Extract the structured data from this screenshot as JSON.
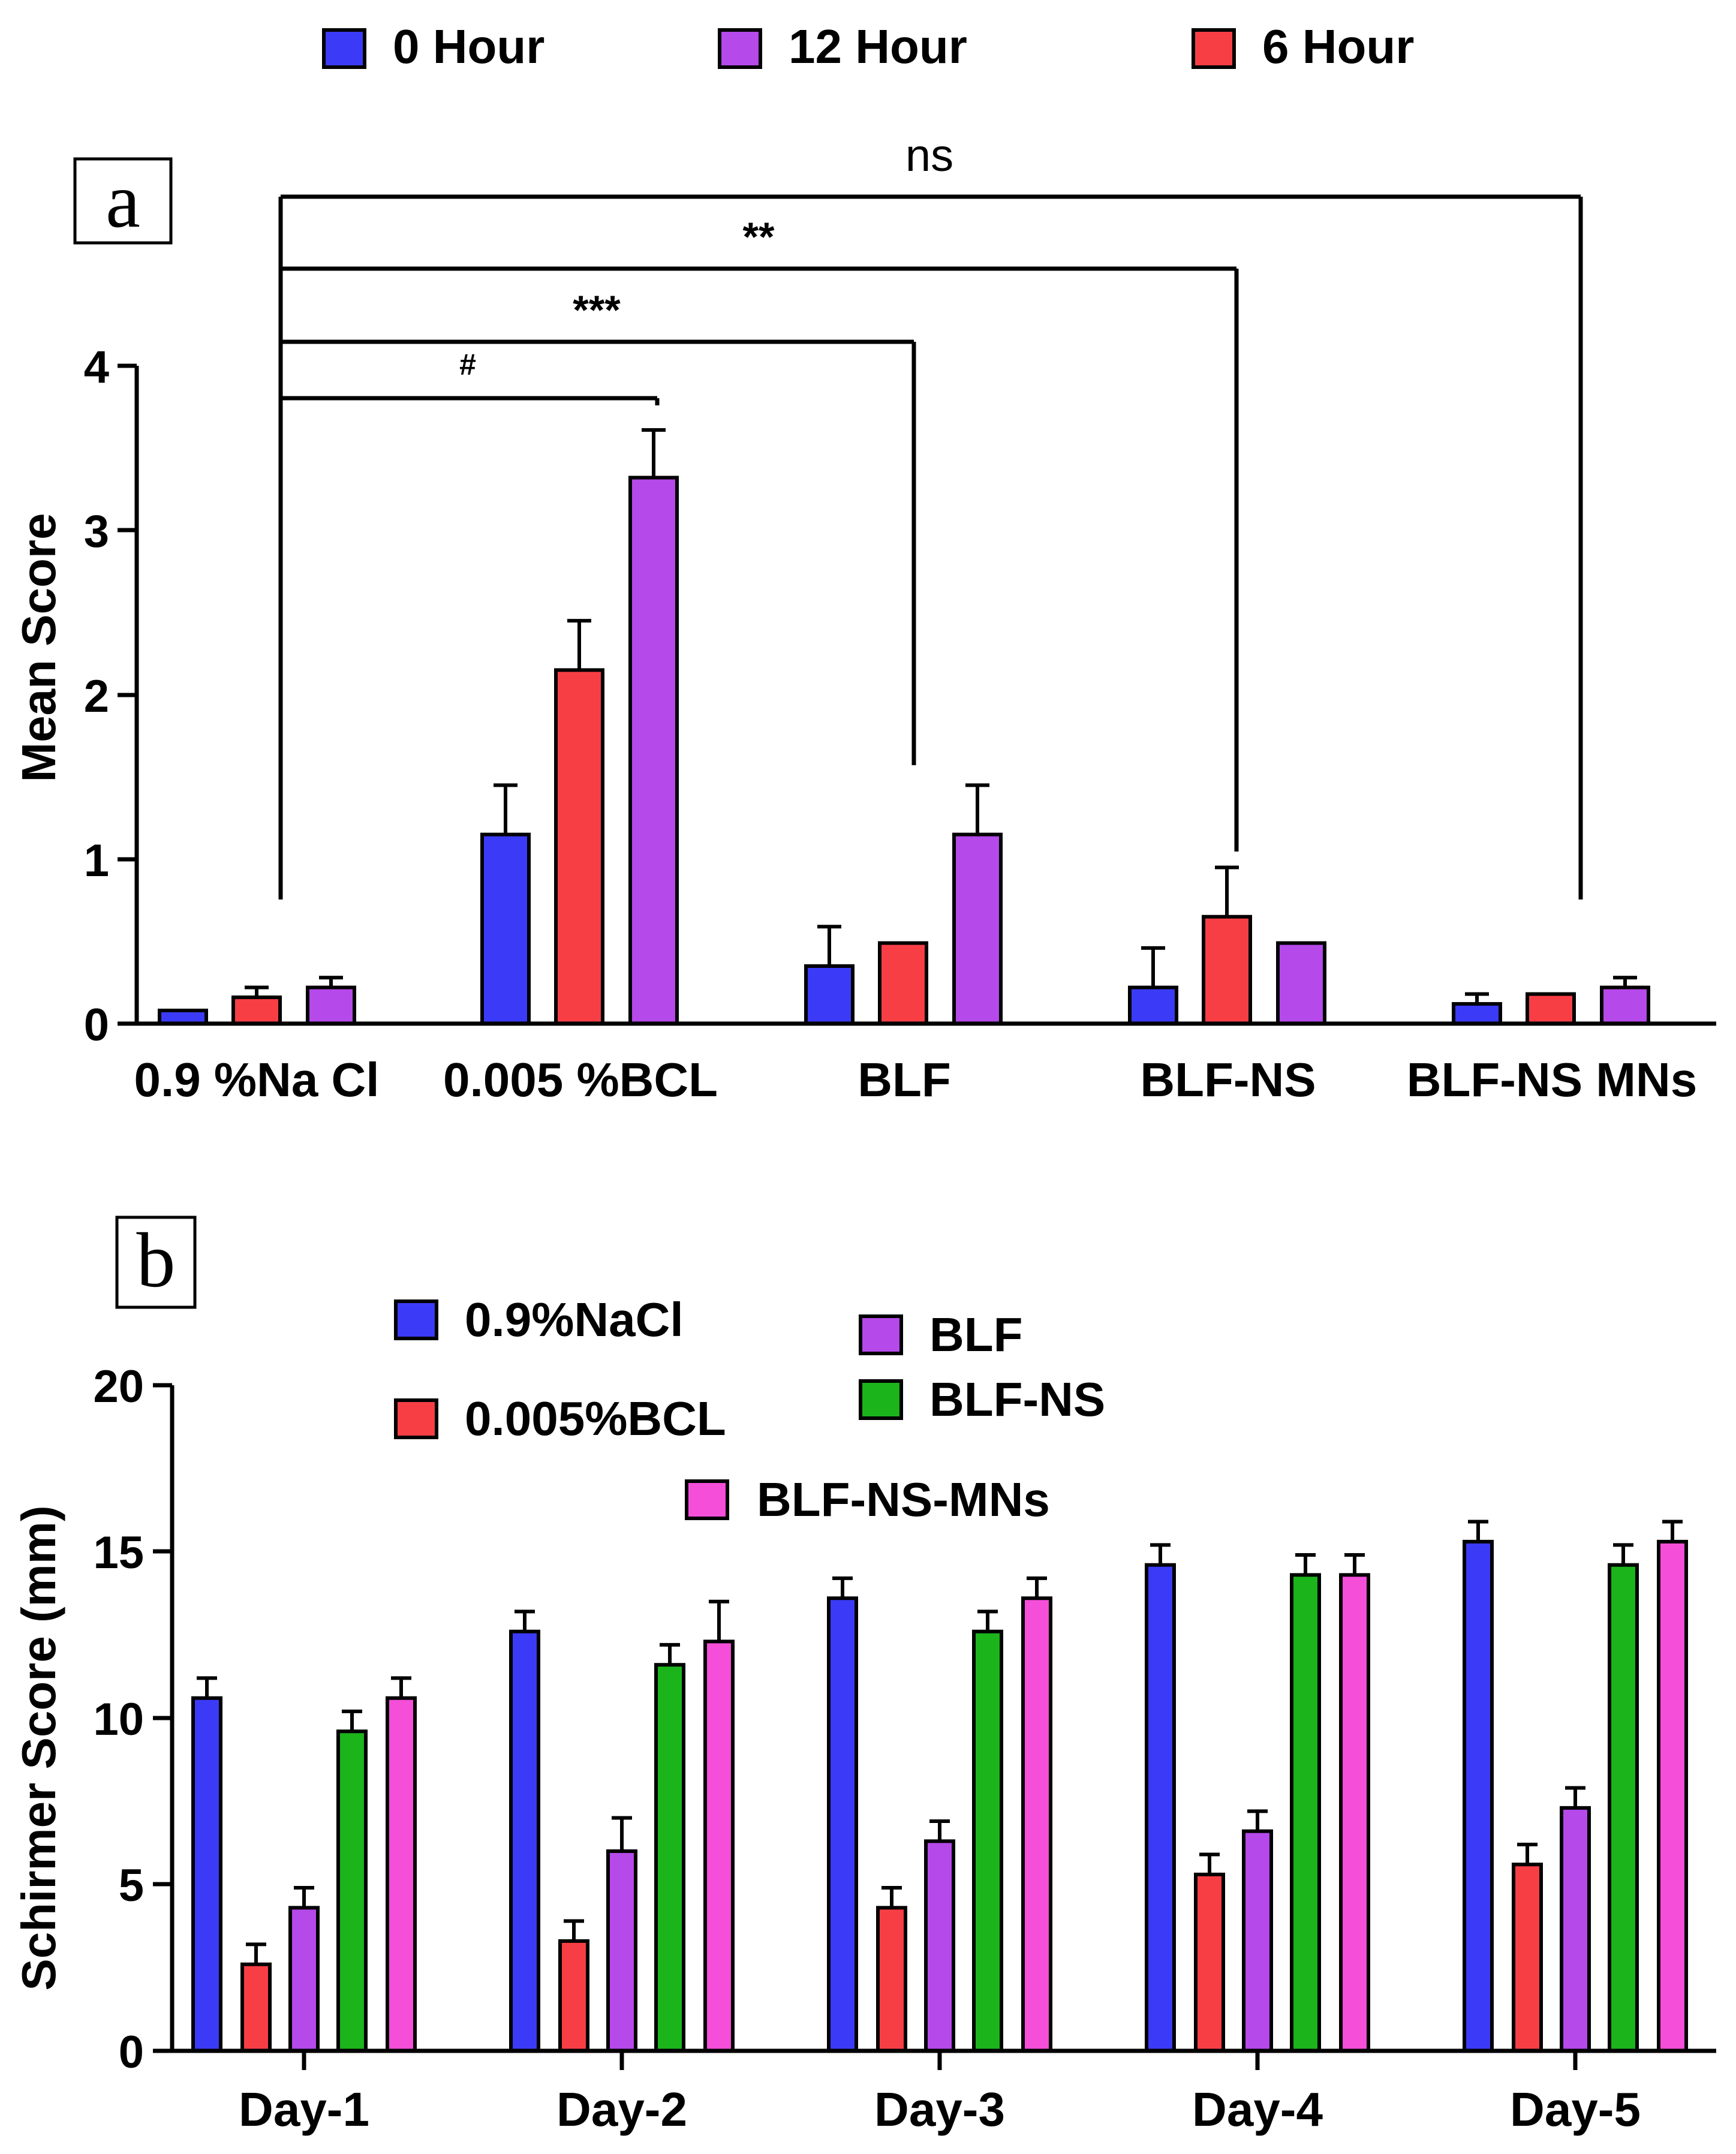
{
  "chart_data": [
    {
      "id": "a",
      "panel_label": "a",
      "type": "bar",
      "ylabel": "Mean Score",
      "xlabel": "",
      "ylim": [
        0,
        4
      ],
      "yticks": [
        "0",
        "1",
        "2",
        "3",
        "4"
      ],
      "categories": [
        "0.9 %Na Cl",
        "0.005 %BCL",
        "BLF",
        "BLF-NS",
        "BLF-NS MNs"
      ],
      "legend_position": "top",
      "legend": [
        {
          "label": "0 Hour",
          "color": "#3b3bf7"
        },
        {
          "label": "12 Hour",
          "color": "#b549ea"
        },
        {
          "label": "6 Hour",
          "color": "#f83e45"
        }
      ],
      "series": [
        {
          "name": "0 Hour",
          "color": "#3b3bf7",
          "values": [
            0.08,
            1.15,
            0.35,
            0.22,
            0.12
          ],
          "errors": [
            0,
            0.3,
            0.24,
            0.24,
            0.06
          ]
        },
        {
          "name": "6 Hour",
          "color": "#f83e45",
          "values": [
            0.16,
            2.15,
            0.49,
            0.65,
            0.18
          ],
          "errors": [
            0.06,
            0.3,
            0,
            0.3,
            0
          ]
        },
        {
          "name": "12 Hour",
          "color": "#b549ea",
          "values": [
            0.22,
            3.32,
            1.15,
            0.49,
            0.22
          ],
          "errors": [
            0.06,
            0.29,
            0.3,
            0,
            0.06
          ]
        }
      ],
      "comparisons": [
        {
          "from": "0.9 %Na Cl",
          "to": "0.005 %BCL",
          "label": "#"
        },
        {
          "from": "0.9 %Na Cl",
          "to": "BLF",
          "label": "***"
        },
        {
          "from": "0.9 %Na Cl",
          "to": "BLF-NS",
          "label": "**"
        },
        {
          "from": "0.9 %Na Cl",
          "to": "BLF-NS MNs",
          "label": "ns"
        }
      ]
    },
    {
      "id": "b",
      "panel_label": "b",
      "type": "bar",
      "ylabel": "Schirmer Score (mm)",
      "xlabel": "",
      "ylim": [
        0,
        20
      ],
      "yticks": [
        "0",
        "5",
        "10",
        "15",
        "20"
      ],
      "categories": [
        "Day-1",
        "Day-2",
        "Day-3",
        "Day-4",
        "Day-5"
      ],
      "legend_position": "top-left",
      "series": [
        {
          "name": "0.9%NaCl",
          "color": "#3b3bf7",
          "values": [
            10.6,
            12.6,
            13.6,
            14.6,
            15.3
          ],
          "errors": [
            0.6,
            0.6,
            0.6,
            0.6,
            0.6
          ]
        },
        {
          "name": "0.005%BCL",
          "color": "#f83e45",
          "values": [
            2.6,
            3.3,
            4.3,
            5.3,
            5.6
          ],
          "errors": [
            0.6,
            0.6,
            0.6,
            0.6,
            0.6
          ]
        },
        {
          "name": "BLF",
          "color": "#b549ea",
          "values": [
            4.3,
            6.0,
            6.3,
            6.6,
            7.3
          ],
          "errors": [
            0.6,
            1.0,
            0.6,
            0.6,
            0.6
          ]
        },
        {
          "name": "BLF-NS",
          "color": "#1bb41b",
          "values": [
            9.6,
            11.6,
            12.6,
            14.3,
            14.6
          ],
          "errors": [
            0.6,
            0.6,
            0.6,
            0.6,
            0.6
          ]
        },
        {
          "name": "BLF-NS-MNs",
          "color": "#f54ed9",
          "values": [
            10.6,
            12.3,
            13.6,
            14.3,
            15.3
          ],
          "errors": [
            0.6,
            1.2,
            0.6,
            0.6,
            0.6
          ]
        }
      ]
    }
  ]
}
